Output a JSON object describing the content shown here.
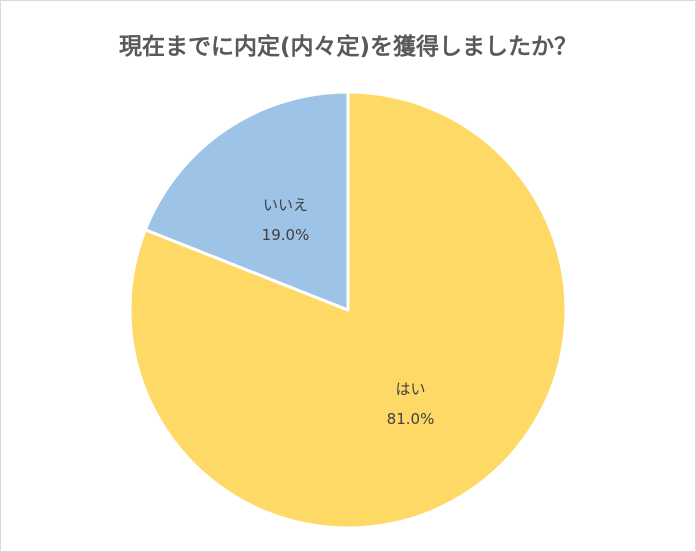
{
  "chart_data": {
    "type": "pie",
    "title": "現在までに内定(内々定)を獲得しましたか？",
    "slices": [
      {
        "label": "はい",
        "value": 81.0,
        "value_label": "81.0%",
        "color": "#ffd966"
      },
      {
        "label": "いいえ",
        "value": 19.0,
        "value_label": "19.0%",
        "color": "#9dc3e6"
      }
    ],
    "start_angle": "12 o'clock",
    "direction": "clockwise",
    "legend": "none",
    "slice_border_color": "#ffffff"
  }
}
